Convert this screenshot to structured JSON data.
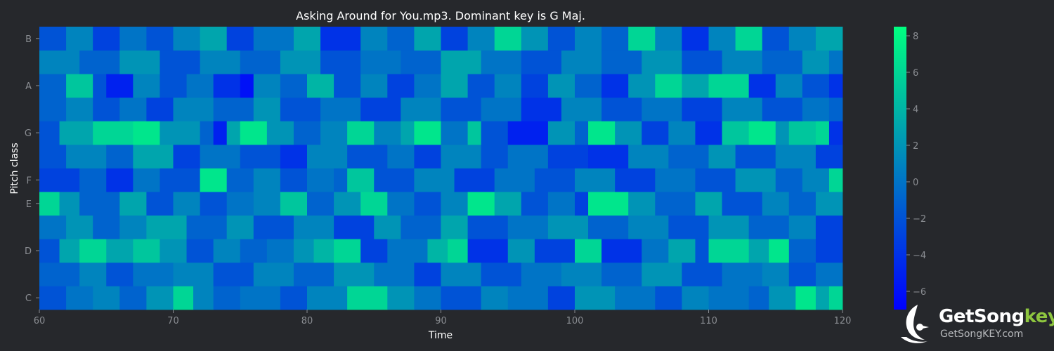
{
  "chart_data": {
    "type": "heatmap",
    "title": "Asking Around for You.mp3. Dominant key is G Maj.",
    "xlabel": "Time",
    "ylabel": "Pitch class",
    "xlim": [
      60,
      120
    ],
    "x_ticks": [
      "60",
      "70",
      "80",
      "90",
      "100",
      "110",
      "120"
    ],
    "y_rows": [
      "C",
      "C#",
      "D",
      "D#",
      "E",
      "F",
      "F#",
      "G",
      "G#",
      "A",
      "A#",
      "B"
    ],
    "y_tick_labels": [
      "C",
      "D",
      "E",
      "F",
      "G",
      "A",
      "B"
    ],
    "value_range": [
      -7,
      8.5
    ],
    "colorbar_ticks": [
      "8",
      "6",
      "4",
      "2",
      "0",
      "−2",
      "−4",
      "−6"
    ],
    "colormap": [
      "#0000ff",
      "#0080c0",
      "#00ff80"
    ],
    "segments": {
      "C": [
        [
          60,
          -2
        ],
        [
          62,
          0
        ],
        [
          64,
          1
        ],
        [
          66,
          -1
        ],
        [
          68,
          2
        ],
        [
          70,
          6
        ],
        [
          71.5,
          1
        ],
        [
          73,
          -1
        ],
        [
          75,
          0
        ],
        [
          78,
          -2
        ],
        [
          80,
          1
        ],
        [
          83,
          6
        ],
        [
          86,
          2
        ],
        [
          88,
          0
        ],
        [
          90,
          -2
        ],
        [
          93,
          1
        ],
        [
          95,
          0
        ],
        [
          98,
          -3
        ],
        [
          100,
          2
        ],
        [
          103,
          0
        ],
        [
          106,
          -2
        ],
        [
          108,
          1
        ],
        [
          110,
          0
        ],
        [
          113,
          -1
        ],
        [
          114.5,
          2
        ],
        [
          116.5,
          7
        ],
        [
          118,
          3
        ],
        [
          119,
          6
        ]
      ],
      "C#": [
        [
          60,
          -1
        ],
        [
          63,
          1
        ],
        [
          65,
          -2
        ],
        [
          67,
          0
        ],
        [
          70,
          1
        ],
        [
          73,
          -2
        ],
        [
          76,
          1
        ],
        [
          79,
          -1
        ],
        [
          82,
          2
        ],
        [
          85,
          0
        ],
        [
          88,
          -3
        ],
        [
          90,
          1
        ],
        [
          93,
          -2
        ],
        [
          96,
          0
        ],
        [
          99,
          1
        ],
        [
          102,
          -1
        ],
        [
          105,
          2
        ],
        [
          108,
          -2
        ],
        [
          111,
          0
        ],
        [
          114,
          1
        ],
        [
          116,
          -2
        ],
        [
          118,
          0
        ]
      ],
      "D": [
        [
          60,
          -2
        ],
        [
          61.5,
          3
        ],
        [
          63,
          6
        ],
        [
          65,
          3
        ],
        [
          67,
          5
        ],
        [
          69,
          2
        ],
        [
          71,
          -2
        ],
        [
          73,
          1
        ],
        [
          75,
          -1
        ],
        [
          77,
          0
        ],
        [
          79,
          2
        ],
        [
          80.5,
          4
        ],
        [
          82,
          6
        ],
        [
          84,
          -3
        ],
        [
          86,
          0
        ],
        [
          89,
          4
        ],
        [
          90.5,
          6
        ],
        [
          92,
          -4
        ],
        [
          95,
          2
        ],
        [
          97,
          -3
        ],
        [
          100,
          6
        ],
        [
          102,
          -4
        ],
        [
          105,
          0
        ],
        [
          107,
          3
        ],
        [
          109,
          -2
        ],
        [
          110,
          6
        ],
        [
          113,
          3
        ],
        [
          114.5,
          7
        ],
        [
          116,
          -1
        ],
        [
          118,
          -3
        ]
      ],
      "D#": [
        [
          60,
          0
        ],
        [
          62,
          2
        ],
        [
          64,
          -1
        ],
        [
          66,
          1
        ],
        [
          68,
          3
        ],
        [
          71,
          -1
        ],
        [
          74,
          2
        ],
        [
          76,
          -2
        ],
        [
          79,
          1
        ],
        [
          82,
          -3
        ],
        [
          85,
          2
        ],
        [
          87,
          -1
        ],
        [
          90,
          3
        ],
        [
          92,
          -2
        ],
        [
          95,
          0
        ],
        [
          98,
          2
        ],
        [
          101,
          -1
        ],
        [
          104,
          1
        ],
        [
          107,
          -2
        ],
        [
          110,
          2
        ],
        [
          113,
          -1
        ],
        [
          116,
          1
        ],
        [
          118,
          -3
        ]
      ],
      "E": [
        [
          60,
          6
        ],
        [
          61.5,
          2
        ],
        [
          63,
          -1
        ],
        [
          66,
          3
        ],
        [
          68,
          -2
        ],
        [
          70,
          1
        ],
        [
          72,
          -2
        ],
        [
          74,
          0
        ],
        [
          76,
          1
        ],
        [
          78,
          5
        ],
        [
          80,
          -1
        ],
        [
          82,
          2
        ],
        [
          84,
          6
        ],
        [
          86,
          0
        ],
        [
          88,
          -2
        ],
        [
          90,
          1
        ],
        [
          92,
          7
        ],
        [
          94,
          3
        ],
        [
          96,
          -2
        ],
        [
          98,
          0
        ],
        [
          100,
          -3
        ],
        [
          101,
          7
        ],
        [
          104,
          2
        ],
        [
          106,
          -1
        ],
        [
          109,
          3
        ],
        [
          111,
          -2
        ],
        [
          114,
          1
        ],
        [
          116,
          -1
        ],
        [
          118,
          2
        ]
      ],
      "F": [
        [
          60,
          -3
        ],
        [
          63,
          -1
        ],
        [
          65,
          -4
        ],
        [
          67,
          0
        ],
        [
          69,
          -2
        ],
        [
          72,
          7
        ],
        [
          74,
          -1
        ],
        [
          76,
          1
        ],
        [
          78,
          -2
        ],
        [
          80,
          0
        ],
        [
          82,
          -1
        ],
        [
          83,
          5
        ],
        [
          85,
          -2
        ],
        [
          88,
          1
        ],
        [
          91,
          -3
        ],
        [
          94,
          0
        ],
        [
          97,
          -2
        ],
        [
          100,
          1
        ],
        [
          103,
          -3
        ],
        [
          106,
          0
        ],
        [
          109,
          -2
        ],
        [
          112,
          2
        ],
        [
          115,
          -1
        ],
        [
          117,
          1
        ],
        [
          119,
          6
        ]
      ],
      "F#": [
        [
          60,
          -2
        ],
        [
          62,
          1
        ],
        [
          65,
          -1
        ],
        [
          67,
          3
        ],
        [
          70,
          -3
        ],
        [
          72,
          0
        ],
        [
          75,
          -2
        ],
        [
          78,
          -4
        ],
        [
          80,
          1
        ],
        [
          83,
          -2
        ],
        [
          86,
          0
        ],
        [
          88,
          -3
        ],
        [
          90,
          1
        ],
        [
          93,
          -2
        ],
        [
          95,
          0
        ],
        [
          98,
          -3
        ],
        [
          101,
          -4
        ],
        [
          104,
          1
        ],
        [
          107,
          -1
        ],
        [
          110,
          2
        ],
        [
          112,
          -2
        ],
        [
          115,
          1
        ],
        [
          118,
          -3
        ]
      ],
      "G": [
        [
          60,
          -2
        ],
        [
          61.5,
          3
        ],
        [
          64,
          6
        ],
        [
          67,
          7
        ],
        [
          69,
          2
        ],
        [
          72,
          -1
        ],
        [
          73,
          -5
        ],
        [
          74,
          3
        ],
        [
          75,
          7
        ],
        [
          77,
          2
        ],
        [
          79,
          -1
        ],
        [
          81,
          1
        ],
        [
          83,
          6
        ],
        [
          85,
          1
        ],
        [
          87,
          3
        ],
        [
          88,
          7
        ],
        [
          90,
          0
        ],
        [
          92,
          5
        ],
        [
          93,
          -2
        ],
        [
          95,
          -5
        ],
        [
          98,
          2
        ],
        [
          100,
          -1
        ],
        [
          101,
          7
        ],
        [
          103,
          2
        ],
        [
          105,
          -3
        ],
        [
          107,
          1
        ],
        [
          109,
          -4
        ],
        [
          111,
          5
        ],
        [
          113,
          7
        ],
        [
          115,
          2
        ],
        [
          116,
          5
        ],
        [
          118,
          6
        ],
        [
          119,
          -4
        ]
      ],
      "G#": [
        [
          60,
          -1
        ],
        [
          62,
          1
        ],
        [
          64,
          -2
        ],
        [
          66,
          0
        ],
        [
          68,
          -3
        ],
        [
          70,
          1
        ],
        [
          73,
          -1
        ],
        [
          76,
          2
        ],
        [
          78,
          -2
        ],
        [
          81,
          0
        ],
        [
          84,
          -3
        ],
        [
          87,
          1
        ],
        [
          90,
          -2
        ],
        [
          93,
          0
        ],
        [
          96,
          -4
        ],
        [
          99,
          1
        ],
        [
          102,
          -2
        ],
        [
          105,
          0
        ],
        [
          108,
          -3
        ],
        [
          111,
          1
        ],
        [
          114,
          -2
        ],
        [
          117,
          0
        ],
        [
          119,
          -1
        ]
      ],
      "A": [
        [
          60,
          -1
        ],
        [
          62,
          5
        ],
        [
          64,
          -2
        ],
        [
          65,
          -5
        ],
        [
          67,
          1
        ],
        [
          69,
          -2
        ],
        [
          71,
          0
        ],
        [
          73,
          -4
        ],
        [
          75,
          -6
        ],
        [
          76,
          1
        ],
        [
          78,
          -1
        ],
        [
          80,
          4
        ],
        [
          82,
          -2
        ],
        [
          84,
          1
        ],
        [
          86,
          -3
        ],
        [
          88,
          0
        ],
        [
          90,
          3
        ],
        [
          92,
          -2
        ],
        [
          94,
          1
        ],
        [
          96,
          -3
        ],
        [
          98,
          2
        ],
        [
          100,
          -1
        ],
        [
          102,
          -4
        ],
        [
          104,
          2
        ],
        [
          106,
          6
        ],
        [
          108,
          3
        ],
        [
          110,
          6
        ],
        [
          113,
          -4
        ],
        [
          115,
          1
        ],
        [
          117,
          -2
        ],
        [
          119,
          -4
        ]
      ],
      "A#": [
        [
          60,
          1
        ],
        [
          63,
          -1
        ],
        [
          66,
          2
        ],
        [
          69,
          -2
        ],
        [
          72,
          1
        ],
        [
          75,
          -1
        ],
        [
          78,
          2
        ],
        [
          81,
          -2
        ],
        [
          84,
          0
        ],
        [
          87,
          -1
        ],
        [
          90,
          3
        ],
        [
          93,
          0
        ],
        [
          96,
          -2
        ],
        [
          99,
          1
        ],
        [
          102,
          -1
        ],
        [
          105,
          2
        ],
        [
          108,
          -2
        ],
        [
          111,
          1
        ],
        [
          114,
          -1
        ],
        [
          117,
          2
        ],
        [
          119,
          0
        ]
      ],
      "B": [
        [
          60,
          -2
        ],
        [
          62,
          1
        ],
        [
          64,
          -3
        ],
        [
          66,
          0
        ],
        [
          68,
          -2
        ],
        [
          70,
          1
        ],
        [
          72,
          3
        ],
        [
          74,
          -3
        ],
        [
          76,
          0
        ],
        [
          79,
          3
        ],
        [
          81,
          -4
        ],
        [
          84,
          1
        ],
        [
          86,
          -1
        ],
        [
          88,
          3
        ],
        [
          90,
          -3
        ],
        [
          92,
          1
        ],
        [
          94,
          6
        ],
        [
          96,
          2
        ],
        [
          98,
          -2
        ],
        [
          100,
          1
        ],
        [
          102,
          -1
        ],
        [
          104,
          6
        ],
        [
          106,
          1
        ],
        [
          108,
          -4
        ],
        [
          110,
          1
        ],
        [
          112,
          6
        ],
        [
          114,
          -2
        ],
        [
          116,
          1
        ],
        [
          118,
          3
        ]
      ]
    }
  },
  "branding": {
    "name_main": "GetSong",
    "name_accent": "key",
    "site": "GetSongKEY.com"
  }
}
